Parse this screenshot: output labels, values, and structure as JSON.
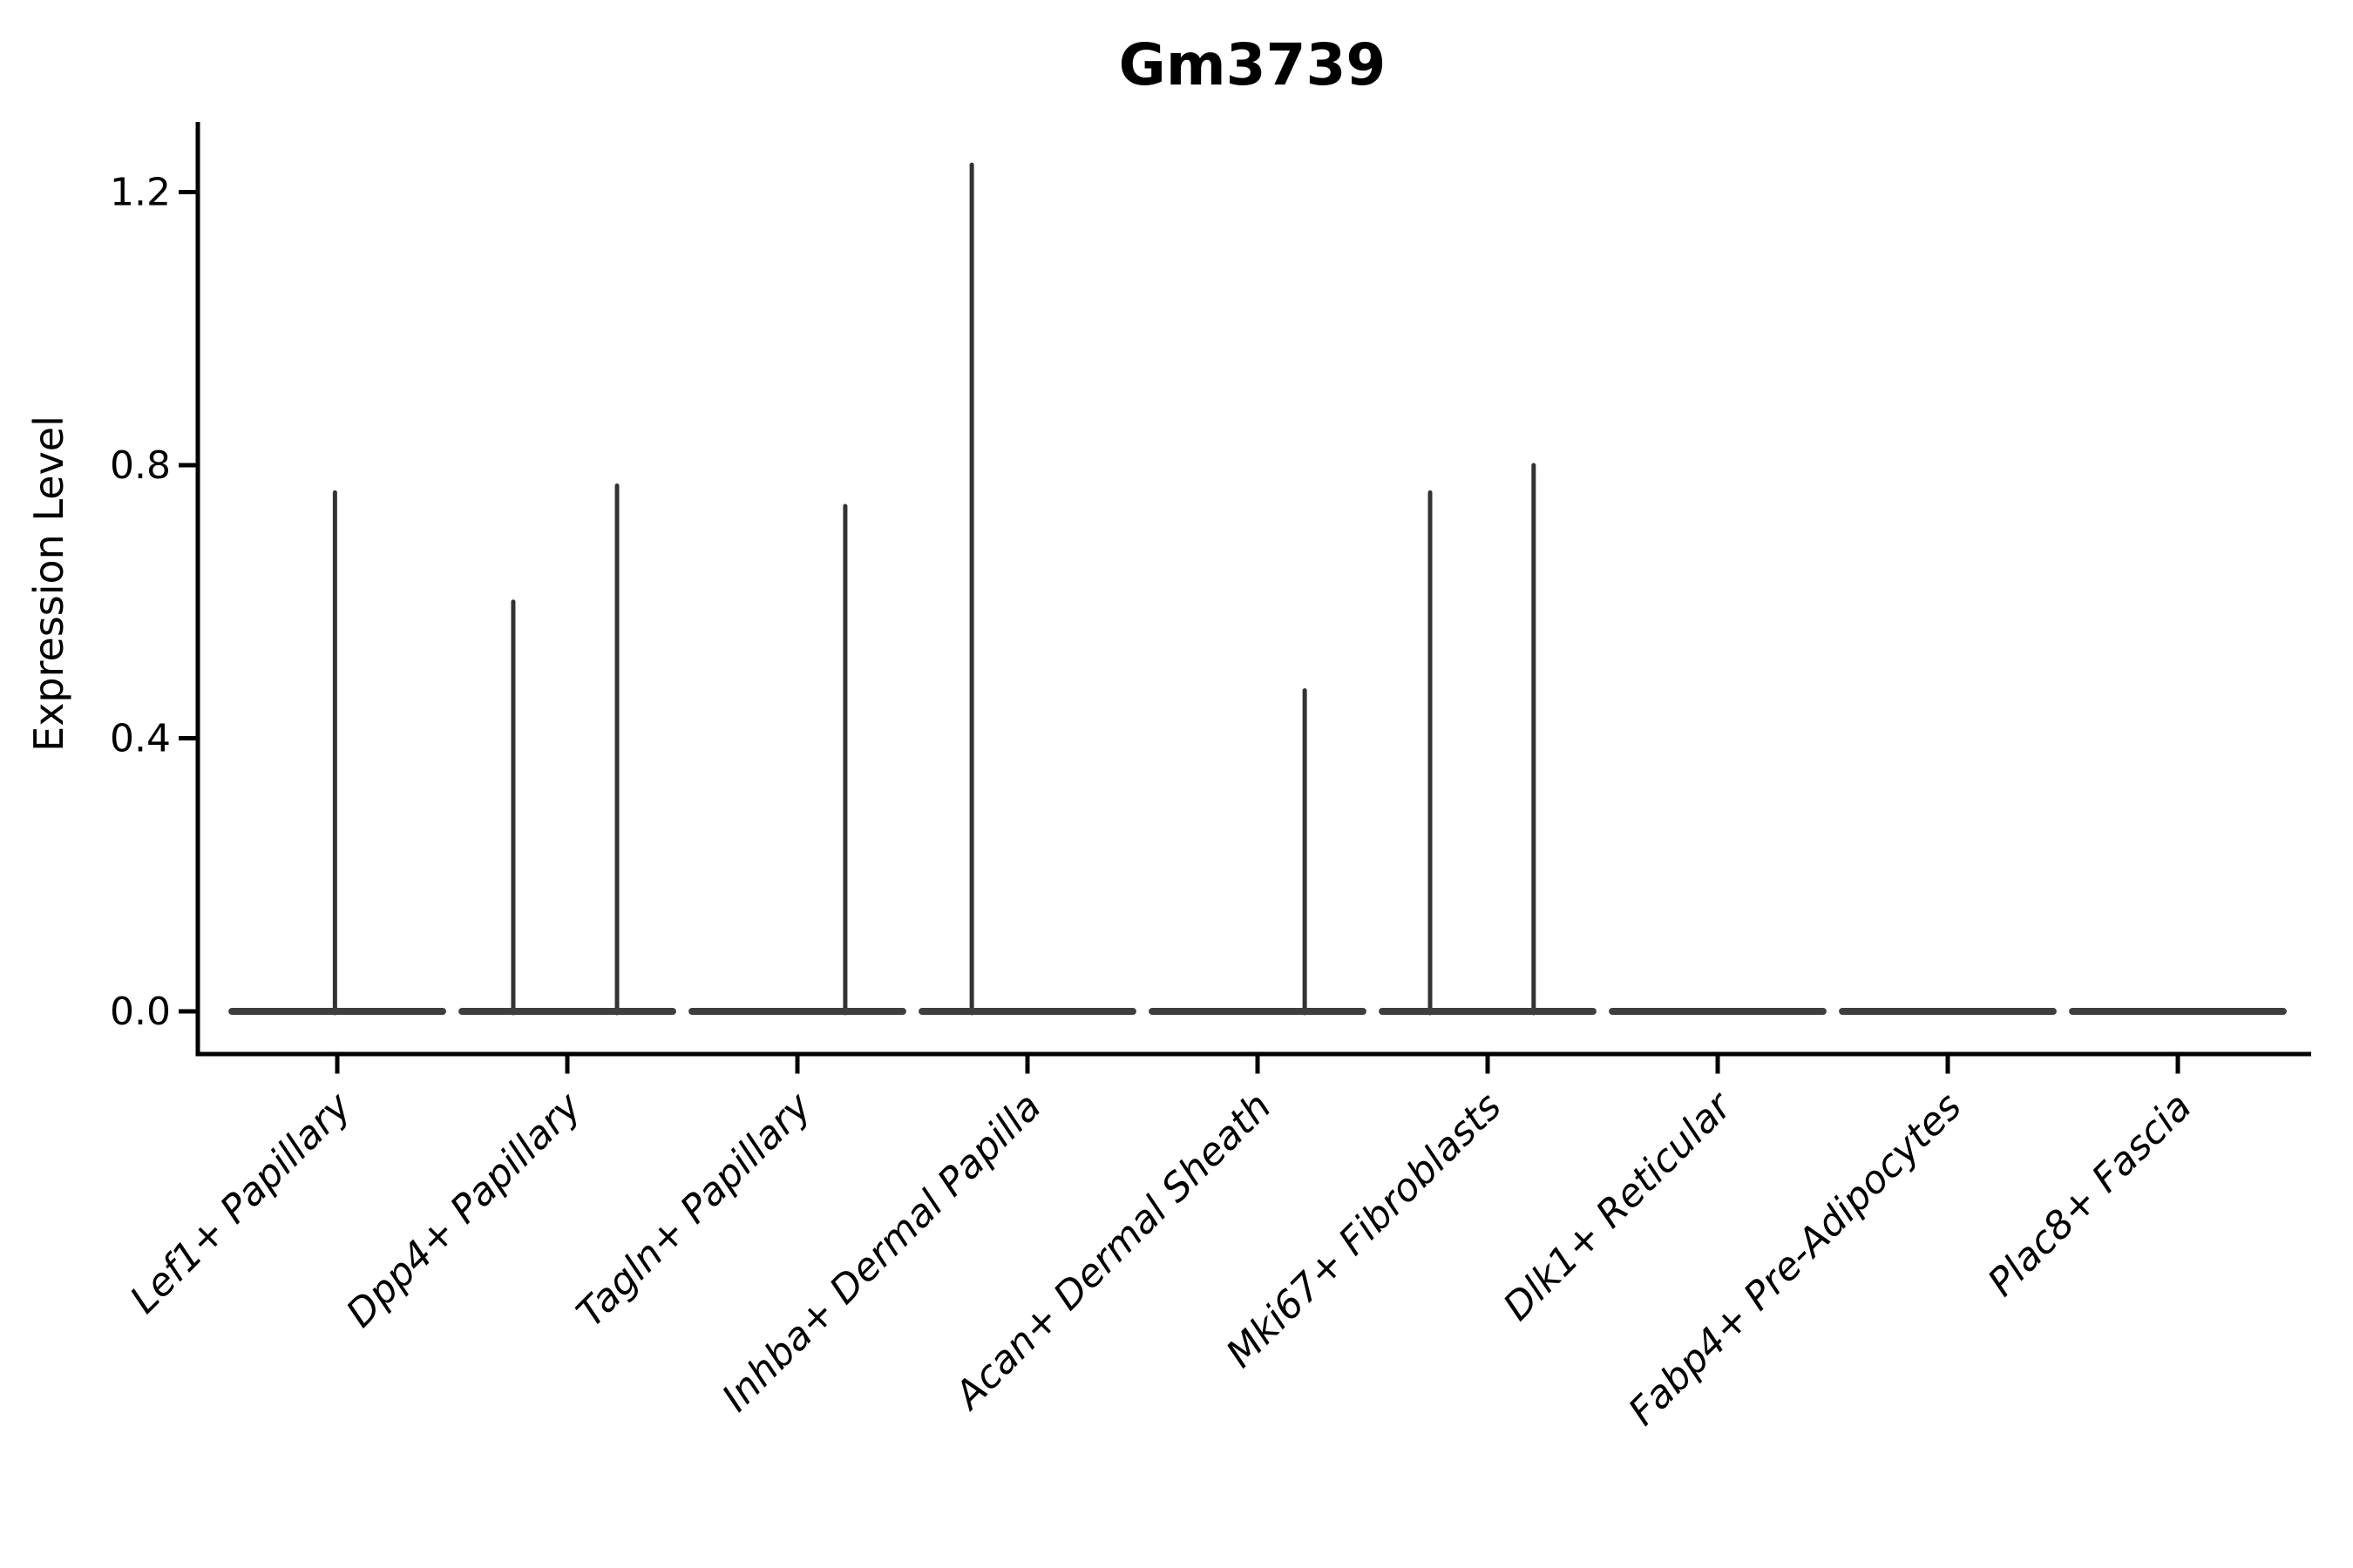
{
  "figure": {
    "title": "Gm3739",
    "ylabel": "Expression Level"
  },
  "chart_data": {
    "type": "violin",
    "title": "Gm3739",
    "xlabel": "",
    "ylabel": "Expression Level",
    "categories": [
      "Lef1+ Papillary",
      "Dpp4+ Papillary",
      "Tagln+ Papillary",
      "Inhba+ Dermal Papilla",
      "Acan+ Dermal Sheath",
      "Mki67+ Fibroblasts",
      "Dlk1+ Reticular",
      "Fabp4+ Pre-Adipocytes",
      "Plac8+ Fascia"
    ],
    "yticks": [
      0.0,
      0.4,
      0.8,
      1.2
    ],
    "ylim": [
      -0.0625,
      1.303
    ],
    "grid": false,
    "legend": null,
    "x_tick_rotation_deg": 45,
    "x_tick_italic": true,
    "violins": [
      {
        "category": "Lef1+ Papillary",
        "base_value": 0.0,
        "base_halfwidth_frac": 0.458,
        "spikes": [
          {
            "offset_frac": -0.01,
            "max_value": 0.76
          }
        ]
      },
      {
        "category": "Dpp4+ Papillary",
        "base_value": 0.0,
        "base_halfwidth_frac": 0.458,
        "spikes": [
          {
            "offset_frac": -0.235,
            "max_value": 0.6
          },
          {
            "offset_frac": 0.216,
            "max_value": 0.77
          }
        ]
      },
      {
        "category": "Tagln+ Papillary",
        "base_value": 0.0,
        "base_halfwidth_frac": 0.458,
        "spikes": [
          {
            "offset_frac": 0.208,
            "max_value": 0.74
          }
        ]
      },
      {
        "category": "Inhba+ Dermal Papilla",
        "base_value": 0.0,
        "base_halfwidth_frac": 0.458,
        "spikes": [
          {
            "offset_frac": -0.242,
            "max_value": 1.24
          }
        ]
      },
      {
        "category": "Acan+ Dermal Sheath",
        "base_value": 0.0,
        "base_halfwidth_frac": 0.458,
        "spikes": [
          {
            "offset_frac": 0.205,
            "max_value": 0.47
          }
        ]
      },
      {
        "category": "Mki67+ Fibroblasts",
        "base_value": 0.0,
        "base_halfwidth_frac": 0.458,
        "spikes": [
          {
            "offset_frac": -0.25,
            "max_value": 0.76
          },
          {
            "offset_frac": 0.2,
            "max_value": 0.8
          }
        ]
      },
      {
        "category": "Dlk1+ Reticular",
        "base_value": 0.0,
        "base_halfwidth_frac": 0.458,
        "spikes": []
      },
      {
        "category": "Fabp4+ Pre-Adipocytes",
        "base_value": 0.0,
        "base_halfwidth_frac": 0.458,
        "spikes": []
      },
      {
        "category": "Plac8+ Fascia",
        "base_value": 0.0,
        "base_halfwidth_frac": 0.458,
        "spikes": []
      }
    ],
    "colors": {
      "violin_edge": "#333333",
      "violin_base": "#3e3e3e",
      "axis": "#000000",
      "text": "#000000",
      "background": "#ffffff"
    }
  }
}
